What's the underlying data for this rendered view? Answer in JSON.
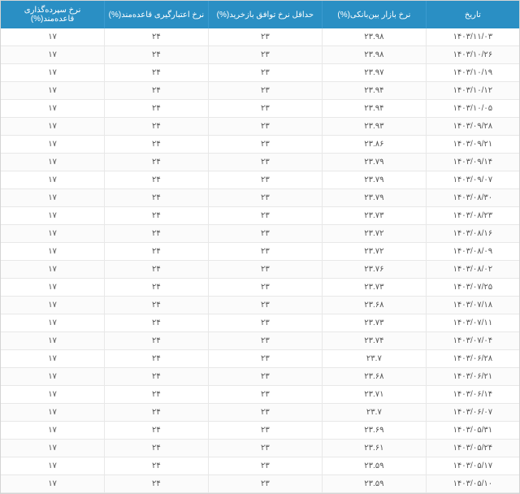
{
  "table": {
    "columns": [
      "تاریخ",
      "نرخ بازار بین‌بانکی(%)",
      "حداقل نرخ توافق بازخرید(%)",
      "نرخ اعتبارگیری قاعده‌مند(%)",
      "نرخ سپرده‌گذاری قاعده‌مند(%)"
    ],
    "rows": [
      [
        "۱۴۰۳/۱۱/۰۳",
        "۲۳.۹۸",
        "۲۳",
        "۲۴",
        "۱۷"
      ],
      [
        "۱۴۰۳/۱۰/۲۶",
        "۲۳.۹۸",
        "۲۳",
        "۲۴",
        "۱۷"
      ],
      [
        "۱۴۰۳/۱۰/۱۹",
        "۲۳.۹۷",
        "۲۳",
        "۲۴",
        "۱۷"
      ],
      [
        "۱۴۰۳/۱۰/۱۲",
        "۲۳.۹۴",
        "۲۳",
        "۲۴",
        "۱۷"
      ],
      [
        "۱۴۰۳/۱۰/۰۵",
        "۲۳.۹۴",
        "۲۳",
        "۲۴",
        "۱۷"
      ],
      [
        "۱۴۰۳/۰۹/۲۸",
        "۲۳.۹۳",
        "۲۳",
        "۲۴",
        "۱۷"
      ],
      [
        "۱۴۰۳/۰۹/۲۱",
        "۲۳.۸۶",
        "۲۳",
        "۲۴",
        "۱۷"
      ],
      [
        "۱۴۰۳/۰۹/۱۴",
        "۲۳.۷۹",
        "۲۳",
        "۲۴",
        "۱۷"
      ],
      [
        "۱۴۰۳/۰۹/۰۷",
        "۲۳.۷۹",
        "۲۳",
        "۲۴",
        "۱۷"
      ],
      [
        "۱۴۰۳/۰۸/۳۰",
        "۲۳.۷۹",
        "۲۳",
        "۲۴",
        "۱۷"
      ],
      [
        "۱۴۰۳/۰۸/۲۳",
        "۲۳.۷۳",
        "۲۳",
        "۲۴",
        "۱۷"
      ],
      [
        "۱۴۰۳/۰۸/۱۶",
        "۲۳.۷۲",
        "۲۳",
        "۲۴",
        "۱۷"
      ],
      [
        "۱۴۰۳/۰۸/۰۹",
        "۲۳.۷۲",
        "۲۳",
        "۲۴",
        "۱۷"
      ],
      [
        "۱۴۰۳/۰۸/۰۲",
        "۲۳.۷۶",
        "۲۳",
        "۲۴",
        "۱۷"
      ],
      [
        "۱۴۰۳/۰۷/۲۵",
        "۲۳.۷۳",
        "۲۳",
        "۲۴",
        "۱۷"
      ],
      [
        "۱۴۰۳/۰۷/۱۸",
        "۲۳.۶۸",
        "۲۳",
        "۲۴",
        "۱۷"
      ],
      [
        "۱۴۰۳/۰۷/۱۱",
        "۲۳.۷۳",
        "۲۳",
        "۲۴",
        "۱۷"
      ],
      [
        "۱۴۰۳/۰۷/۰۴",
        "۲۳.۷۴",
        "۲۳",
        "۲۴",
        "۱۷"
      ],
      [
        "۱۴۰۳/۰۶/۲۸",
        "۲۳.۷",
        "۲۳",
        "۲۴",
        "۱۷"
      ],
      [
        "۱۴۰۳/۰۶/۲۱",
        "۲۳.۶۸",
        "۲۳",
        "۲۴",
        "۱۷"
      ],
      [
        "۱۴۰۳/۰۶/۱۴",
        "۲۳.۷۱",
        "۲۳",
        "۲۴",
        "۱۷"
      ],
      [
        "۱۴۰۳/۰۶/۰۷",
        "۲۳.۷",
        "۲۳",
        "۲۴",
        "۱۷"
      ],
      [
        "۱۴۰۳/۰۵/۳۱",
        "۲۳.۶۹",
        "۲۳",
        "۲۴",
        "۱۷"
      ],
      [
        "۱۴۰۳/۰۵/۲۴",
        "۲۳.۶۱",
        "۲۳",
        "۲۴",
        "۱۷"
      ],
      [
        "۱۴۰۳/۰۵/۱۷",
        "۲۳.۵۹",
        "۲۳",
        "۲۴",
        "۱۷"
      ],
      [
        "۱۴۰۳/۰۵/۱۰",
        "۲۳.۵۹",
        "۲۳",
        "۲۴",
        "۱۷"
      ]
    ],
    "header_bg": "#2a8fc4",
    "header_text_color": "#ffffff",
    "row_border_color": "#e8e8e8",
    "cell_text_color": "#555555",
    "font_size_header": 10,
    "font_size_cell": 10,
    "alt_row_bg": "#fbfbfb",
    "column_widths_pct": [
      18,
      20,
      22,
      20,
      20
    ]
  }
}
